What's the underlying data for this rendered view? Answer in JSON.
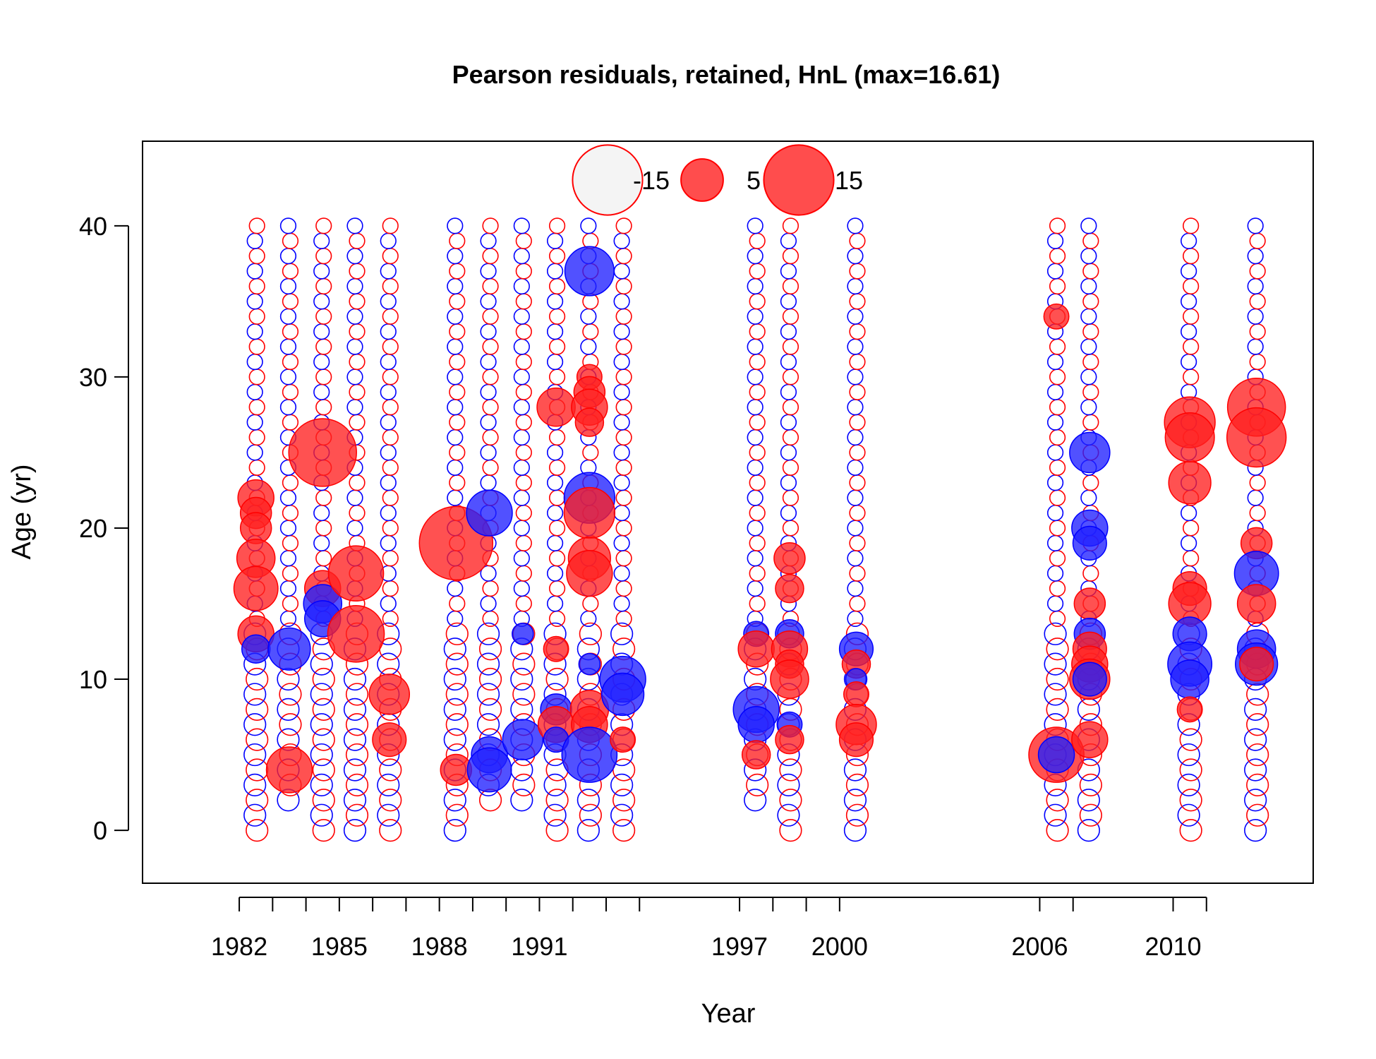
{
  "chart_data": {
    "type": "scatter",
    "title": "Pearson residuals, retained, HnL (max=16.61)",
    "xlabel": "Year",
    "ylabel": "Age (yr)",
    "xlim": [
      1979.1,
      2014.2
    ],
    "ylim": [
      -3.5,
      45.6
    ],
    "x_tick_values": [
      1982,
      1983,
      1984,
      1985,
      1986,
      1987,
      1988,
      1989,
      1990,
      1991,
      1992,
      1993,
      1994,
      1997,
      1998,
      1999,
      2000,
      2006,
      2007,
      2010,
      2011
    ],
    "x_tick_labels": [
      {
        "value": 1982,
        "text": "1982"
      },
      {
        "value": 1985,
        "text": "1985"
      },
      {
        "value": 1988,
        "text": "1988"
      },
      {
        "value": 1991,
        "text": "1991"
      },
      {
        "value": 1997,
        "text": "1997"
      },
      {
        "value": 2000,
        "text": "2000"
      },
      {
        "value": 2006,
        "text": "2006"
      },
      {
        "value": 2010,
        "text": "2010"
      }
    ],
    "y_ticks": [
      0,
      10,
      20,
      30,
      40
    ],
    "y_tick_labels": [
      "0",
      "10",
      "20",
      "30",
      "40"
    ],
    "max_residual": 16.61,
    "colors": {
      "positive_fill": "#ff2020",
      "positive_stroke": "#ff0000",
      "negative_fill": "#2020ff",
      "negative_stroke": "#0000ff",
      "light_fill": "#f4f4f4"
    },
    "legend": {
      "placement": "top-center",
      "items": [
        {
          "value": -15,
          "label": "-15",
          "style": "light"
        },
        {
          "value": 5,
          "label": "5",
          "style": "positive"
        },
        {
          "value": 15,
          "label": "15",
          "style": "positive"
        }
      ]
    },
    "sample_years": [
      1982.5,
      1983.5,
      1984.5,
      1985.5,
      1986.5,
      1988.5,
      1989.5,
      1990.5,
      1991.5,
      1992.5,
      1993.5,
      1997.5,
      1998.5,
      2000.5,
      2006.5,
      2007.5,
      2010.5,
      2012.5
    ],
    "all_ages_years": [
      1982.5,
      1984.5,
      1985.5,
      1986.5,
      1988.5,
      1991.5,
      1992.5,
      1993.5,
      1998.5,
      2000.5,
      2006.5,
      2007.5,
      2010.5,
      2012.5
    ],
    "age_range": [
      0,
      40
    ],
    "background_residual": 0.6,
    "notable_residuals": [
      {
        "x": 1982.5,
        "age": 22,
        "r": 3.5
      },
      {
        "x": 1982.5,
        "age": 21,
        "r": 2.5
      },
      {
        "x": 1982.5,
        "age": 20,
        "r": 2.5
      },
      {
        "x": 1982.5,
        "age": 18,
        "r": 4.0
      },
      {
        "x": 1982.5,
        "age": 16,
        "r": 5.5
      },
      {
        "x": 1982.5,
        "age": 13,
        "r": 3.5
      },
      {
        "x": 1982.5,
        "age": 12,
        "r": -2.0
      },
      {
        "x": 1983.5,
        "age": 12,
        "r": -5.0
      },
      {
        "x": 1983.5,
        "age": 4,
        "r": 6.0
      },
      {
        "x": 1984.5,
        "age": 25,
        "r": 14.0
      },
      {
        "x": 1984.5,
        "age": 16,
        "r": 3.5
      },
      {
        "x": 1984.5,
        "age": 15,
        "r": -4.0
      },
      {
        "x": 1984.5,
        "age": 14,
        "r": -3.5
      },
      {
        "x": 1985.5,
        "age": 17,
        "r": 9.0
      },
      {
        "x": 1985.5,
        "age": 13,
        "r": 9.5
      },
      {
        "x": 1986.5,
        "age": 9,
        "r": 4.5
      },
      {
        "x": 1986.5,
        "age": 6,
        "r": 3.0
      },
      {
        "x": 1988.5,
        "age": 19,
        "r": 16.61
      },
      {
        "x": 1988.5,
        "age": 4,
        "r": 2.5
      },
      {
        "x": 1989.5,
        "age": 21,
        "r": -6.0
      },
      {
        "x": 1989.5,
        "age": 5,
        "r": -3.5
      },
      {
        "x": 1989.5,
        "age": 4,
        "r": -5.5
      },
      {
        "x": 1990.5,
        "age": 6,
        "r": -4.5
      },
      {
        "x": 1990.5,
        "age": 13,
        "r": -1.0
      },
      {
        "x": 1991.5,
        "age": 28,
        "r": 4.0
      },
      {
        "x": 1991.5,
        "age": 12,
        "r": 1.5
      },
      {
        "x": 1991.5,
        "age": 8,
        "r": -2.5
      },
      {
        "x": 1991.5,
        "age": 7,
        "r": 3.5
      },
      {
        "x": 1991.5,
        "age": 6,
        "r": -1.5
      },
      {
        "x": 1992.5,
        "age": 37,
        "r": -7.0
      },
      {
        "x": 1992.5,
        "age": 30,
        "r": 1.5
      },
      {
        "x": 1992.5,
        "age": 29,
        "r": 2.5
      },
      {
        "x": 1992.5,
        "age": 28,
        "r": 3.5
      },
      {
        "x": 1992.5,
        "age": 27,
        "r": 2.0
      },
      {
        "x": 1992.5,
        "age": 22,
        "r": -7.5
      },
      {
        "x": 1992.5,
        "age": 21,
        "r": 7.5
      },
      {
        "x": 1992.5,
        "age": 18,
        "r": 5.0
      },
      {
        "x": 1992.5,
        "age": 17,
        "r": 6.0
      },
      {
        "x": 1992.5,
        "age": 11,
        "r": -1.0
      },
      {
        "x": 1992.5,
        "age": 8,
        "r": 4.0
      },
      {
        "x": 1992.5,
        "age": 7,
        "r": 3.5
      },
      {
        "x": 1992.5,
        "age": 5,
        "r": -9.0
      },
      {
        "x": 1993.5,
        "age": 10,
        "r": -6.0
      },
      {
        "x": 1993.5,
        "age": 9,
        "r": -5.0
      },
      {
        "x": 1993.5,
        "age": 6,
        "r": 1.5
      },
      {
        "x": 1997.5,
        "age": 13,
        "r": -1.5
      },
      {
        "x": 1997.5,
        "age": 12,
        "r": 3.5
      },
      {
        "x": 1997.5,
        "age": 8,
        "r": -6.0
      },
      {
        "x": 1997.5,
        "age": 7,
        "r": -3.5
      },
      {
        "x": 1997.5,
        "age": 5,
        "r": 2.0
      },
      {
        "x": 1998.5,
        "age": 18,
        "r": 2.5
      },
      {
        "x": 1998.5,
        "age": 16,
        "r": 2.0
      },
      {
        "x": 1998.5,
        "age": 13,
        "r": -2.0
      },
      {
        "x": 1998.5,
        "age": 12,
        "r": 3.5
      },
      {
        "x": 1998.5,
        "age": 11,
        "r": 2.0
      },
      {
        "x": 1998.5,
        "age": 10,
        "r": 4.0
      },
      {
        "x": 1998.5,
        "age": 7,
        "r": -1.5
      },
      {
        "x": 1998.5,
        "age": 6,
        "r": 2.0
      },
      {
        "x": 2000.5,
        "age": 12,
        "r": -3.0
      },
      {
        "x": 2000.5,
        "age": 11,
        "r": 2.0
      },
      {
        "x": 2000.5,
        "age": 10,
        "r": -1.0
      },
      {
        "x": 2000.5,
        "age": 9,
        "r": 1.5
      },
      {
        "x": 2000.5,
        "age": 7,
        "r": 4.5
      },
      {
        "x": 2000.5,
        "age": 6,
        "r": 3.0
      },
      {
        "x": 2006.5,
        "age": 34,
        "r": 1.5
      },
      {
        "x": 2006.5,
        "age": 5,
        "r": 9.0
      },
      {
        "x": 2006.5,
        "age": 5,
        "r": -3.5
      },
      {
        "x": 2007.5,
        "age": 25,
        "r": -4.5
      },
      {
        "x": 2007.5,
        "age": 20,
        "r": -3.5
      },
      {
        "x": 2007.5,
        "age": 19,
        "r": -3.0
      },
      {
        "x": 2007.5,
        "age": 15,
        "r": 2.5
      },
      {
        "x": 2007.5,
        "age": 13,
        "r": -2.5
      },
      {
        "x": 2007.5,
        "age": 12,
        "r": 3.0
      },
      {
        "x": 2007.5,
        "age": 11,
        "r": 3.5
      },
      {
        "x": 2007.5,
        "age": 10,
        "r": 4.5
      },
      {
        "x": 2007.5,
        "age": 10,
        "r": -3.0
      },
      {
        "x": 2007.5,
        "age": 6,
        "r": 3.5
      },
      {
        "x": 2010.5,
        "age": 27,
        "r": 7.5
      },
      {
        "x": 2010.5,
        "age": 26,
        "r": 7.0
      },
      {
        "x": 2010.5,
        "age": 23,
        "r": 5.0
      },
      {
        "x": 2010.5,
        "age": 16,
        "r": 3.0
      },
      {
        "x": 2010.5,
        "age": 15,
        "r": 5.0
      },
      {
        "x": 2010.5,
        "age": 13,
        "r": -3.0
      },
      {
        "x": 2010.5,
        "age": 11,
        "r": -5.5
      },
      {
        "x": 2010.5,
        "age": 10,
        "r": -4.0
      },
      {
        "x": 2010.5,
        "age": 8,
        "r": 1.5
      },
      {
        "x": 2012.5,
        "age": 28,
        "r": 10.0
      },
      {
        "x": 2012.5,
        "age": 26,
        "r": 10.5
      },
      {
        "x": 2012.5,
        "age": 19,
        "r": 2.5
      },
      {
        "x": 2012.5,
        "age": 17,
        "r": -5.5
      },
      {
        "x": 2012.5,
        "age": 15,
        "r": 4.0
      },
      {
        "x": 2012.5,
        "age": 12,
        "r": -4.0
      },
      {
        "x": 2012.5,
        "age": 11,
        "r": -5.0
      },
      {
        "x": 2012.5,
        "age": 11,
        "r": 3.0
      }
    ]
  }
}
